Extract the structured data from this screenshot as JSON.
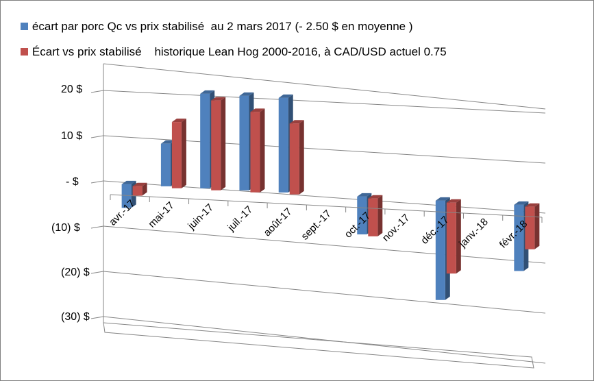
{
  "chart_data": {
    "type": "bar",
    "categories": [
      "avr.-17",
      "mai-17",
      "juin-17",
      "juil.-17",
      "août-17",
      "sept.-17",
      "oct.-17",
      "nov.-17",
      "déc.-17",
      "janv.-18",
      "févr.-18"
    ],
    "series": [
      {
        "name": "écart par porc Qc vs prix stabilisé  au 2 mars 2017 (- 2.50 $ en moyenne )",
        "color": "#4f81bd",
        "values": [
          -5,
          9,
          20,
          20,
          20,
          null,
          -8,
          null,
          -21,
          null,
          -14
        ]
      },
      {
        "name": "Écart vs prix stabilisé    historique Lean Hog 2000-2016, à CAD/USD actuel 0.75",
        "color": "#c0504d",
        "values": [
          -2,
          14,
          19,
          17,
          15,
          null,
          -8,
          null,
          -15,
          null,
          -9
        ]
      }
    ],
    "y_tick_labels": [
      "20  $",
      "10  $",
      "-    $",
      "(10) $",
      "(20) $",
      "(30) $"
    ],
    "y_ticks": [
      20,
      10,
      0,
      -10,
      -20,
      -30
    ],
    "ylim": [
      -30,
      20
    ],
    "grid": true,
    "legend_position": "top-left",
    "view": "3d-perspective"
  }
}
